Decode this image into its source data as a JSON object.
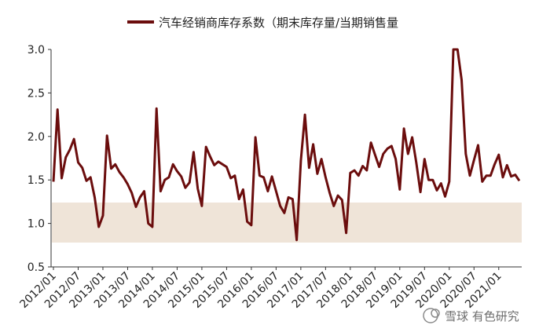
{
  "chart_data": {
    "type": "line",
    "title": "",
    "xlabel": "",
    "ylabel": "",
    "ylim": [
      0.5,
      3.0
    ],
    "yticks": [
      "0.5",
      "1.0",
      "1.5",
      "2.0",
      "2.5",
      "3.0"
    ],
    "xticks": [
      "2012/01",
      "2012/07",
      "2013/01",
      "2013/07",
      "2014/01",
      "2014/07",
      "2015/01",
      "2015/07",
      "2016/01",
      "2016/07",
      "2017/01",
      "2017/07",
      "2018/01",
      "2018/07",
      "2019/01",
      "2019/07",
      "2020/01",
      "2020/07",
      "2021/01"
    ],
    "legend": "top-center",
    "grid": false,
    "band": {
      "from": 0.78,
      "to": 1.24,
      "color": "#efe4d8"
    },
    "series": [
      {
        "name": "汽车经销商库存系数（期末库存量/当期销售量",
        "color": "#6b0d0d",
        "start": "2012/01",
        "frequency": "monthly",
        "values": [
          1.48,
          2.31,
          1.52,
          1.76,
          1.85,
          1.97,
          1.7,
          1.64,
          1.49,
          1.53,
          1.3,
          0.96,
          1.09,
          2.01,
          1.63,
          1.68,
          1.59,
          1.53,
          1.45,
          1.35,
          1.19,
          1.3,
          1.37,
          1.0,
          0.96,
          2.32,
          1.37,
          1.5,
          1.53,
          1.68,
          1.6,
          1.54,
          1.41,
          1.47,
          1.82,
          1.4,
          1.2,
          1.88,
          1.77,
          1.67,
          1.71,
          1.68,
          1.65,
          1.52,
          1.55,
          1.28,
          1.39,
          1.02,
          0.98,
          1.99,
          1.55,
          1.53,
          1.37,
          1.54,
          1.37,
          1.2,
          1.12,
          1.3,
          1.28,
          0.81,
          1.72,
          2.25,
          1.64,
          1.91,
          1.57,
          1.74,
          1.53,
          1.35,
          1.2,
          1.32,
          1.27,
          0.89,
          1.58,
          1.61,
          1.55,
          1.66,
          1.61,
          1.93,
          1.79,
          1.65,
          1.8,
          1.86,
          1.89,
          1.74,
          1.39,
          2.09,
          1.8,
          1.99,
          1.7,
          1.36,
          1.74,
          1.5,
          1.5,
          1.38,
          1.46,
          1.31,
          1.48,
          3.0,
          3.0,
          2.65,
          1.8,
          1.55,
          1.73,
          1.9,
          1.48,
          1.55,
          1.55,
          1.68,
          1.79,
          1.53,
          1.67,
          1.54,
          1.56,
          1.49
        ]
      }
    ]
  },
  "legend": {
    "label": "汽车经销商库存系数（期末库存量/当期销售量"
  },
  "watermark": {
    "text": "雪球 有色研究",
    "icon": "snowball-logo-icon"
  }
}
